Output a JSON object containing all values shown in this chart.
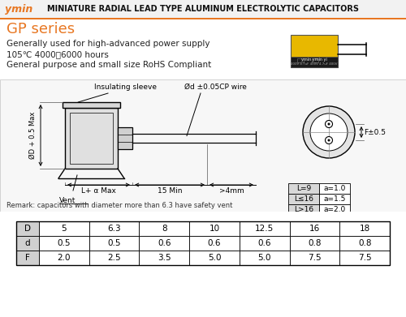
{
  "title_brand": "ymin",
  "title_text": "MINIATURE RADIAL LEAD TYPE ALUMINUM ELECTROLYTIC CAPACITORS",
  "series_name": "GP series",
  "desc_line1": "Generally used for high-advanced power supply",
  "desc_line2": "105℃ 4000～6000 hours",
  "desc_line3": "General purpose and small size RoHS Compliant",
  "orange_color": "#E87722",
  "label_insulating": "Insulating sleeve",
  "label_wire": "Ød ±0.05CP wire",
  "label_d_max": "ØD + 0.5 Max",
  "label_l_alpha": "L+ α Max",
  "label_15min": "15 Min",
  "label_4mm": ">4mm",
  "label_vent": "Vent",
  "label_f": "F±0.5",
  "remark": "Remark: capacitors with diameter more than 6.3 have safety vent",
  "table_D_label": "D",
  "table_d_label": "d",
  "table_F_label": "F",
  "table_D_values": [
    "5",
    "6.3",
    "8",
    "10",
    "12.5",
    "16",
    "18"
  ],
  "table_d_values": [
    "0.5",
    "0.5",
    "0.6",
    "0.6",
    "0.6",
    "0.8",
    "0.8"
  ],
  "table_F_values": [
    "2.0",
    "2.5",
    "3.5",
    "5.0",
    "5.0",
    "7.5",
    "7.5"
  ],
  "alpha_table": [
    {
      "cond": "L=9",
      "val": "a=1.0"
    },
    {
      "cond": "L≤16",
      "val": "a=1.5"
    },
    {
      "cond": "L>16",
      "val": "a=2.0"
    }
  ]
}
